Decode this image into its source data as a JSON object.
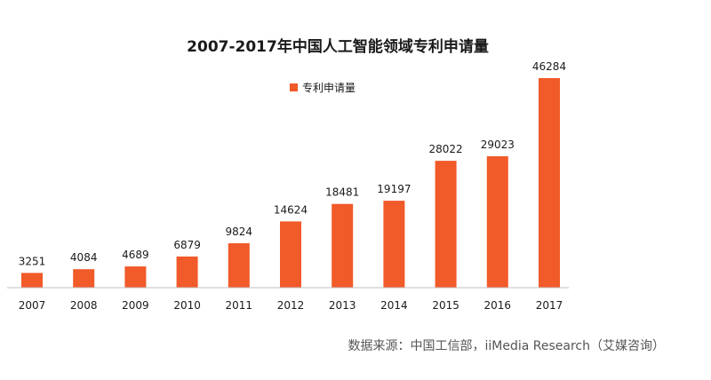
{
  "chart_data": {
    "type": "bar",
    "title": "2007-2017年中国人工智能领域专利申请量",
    "xlabel": "",
    "ylabel": "",
    "categories": [
      "2007",
      "2008",
      "2009",
      "2010",
      "2011",
      "2012",
      "2013",
      "2014",
      "2015",
      "2016",
      "2017"
    ],
    "series": [
      {
        "name": "专利申请量",
        "values": [
          3251,
          4084,
          4689,
          6879,
          9824,
          14624,
          18481,
          19197,
          28022,
          29023,
          46284
        ],
        "color": "#f15a29"
      }
    ],
    "ylim": [
      0,
      50000
    ],
    "grid": false,
    "legend_position": "top-left of plot"
  },
  "source_text": "数据来源：中国工信部，iiMedia Research（艾媒咨询）",
  "colors": {
    "bar": "#f15a29",
    "axis": "#bfbfbf",
    "text": "#1a1a1a"
  }
}
